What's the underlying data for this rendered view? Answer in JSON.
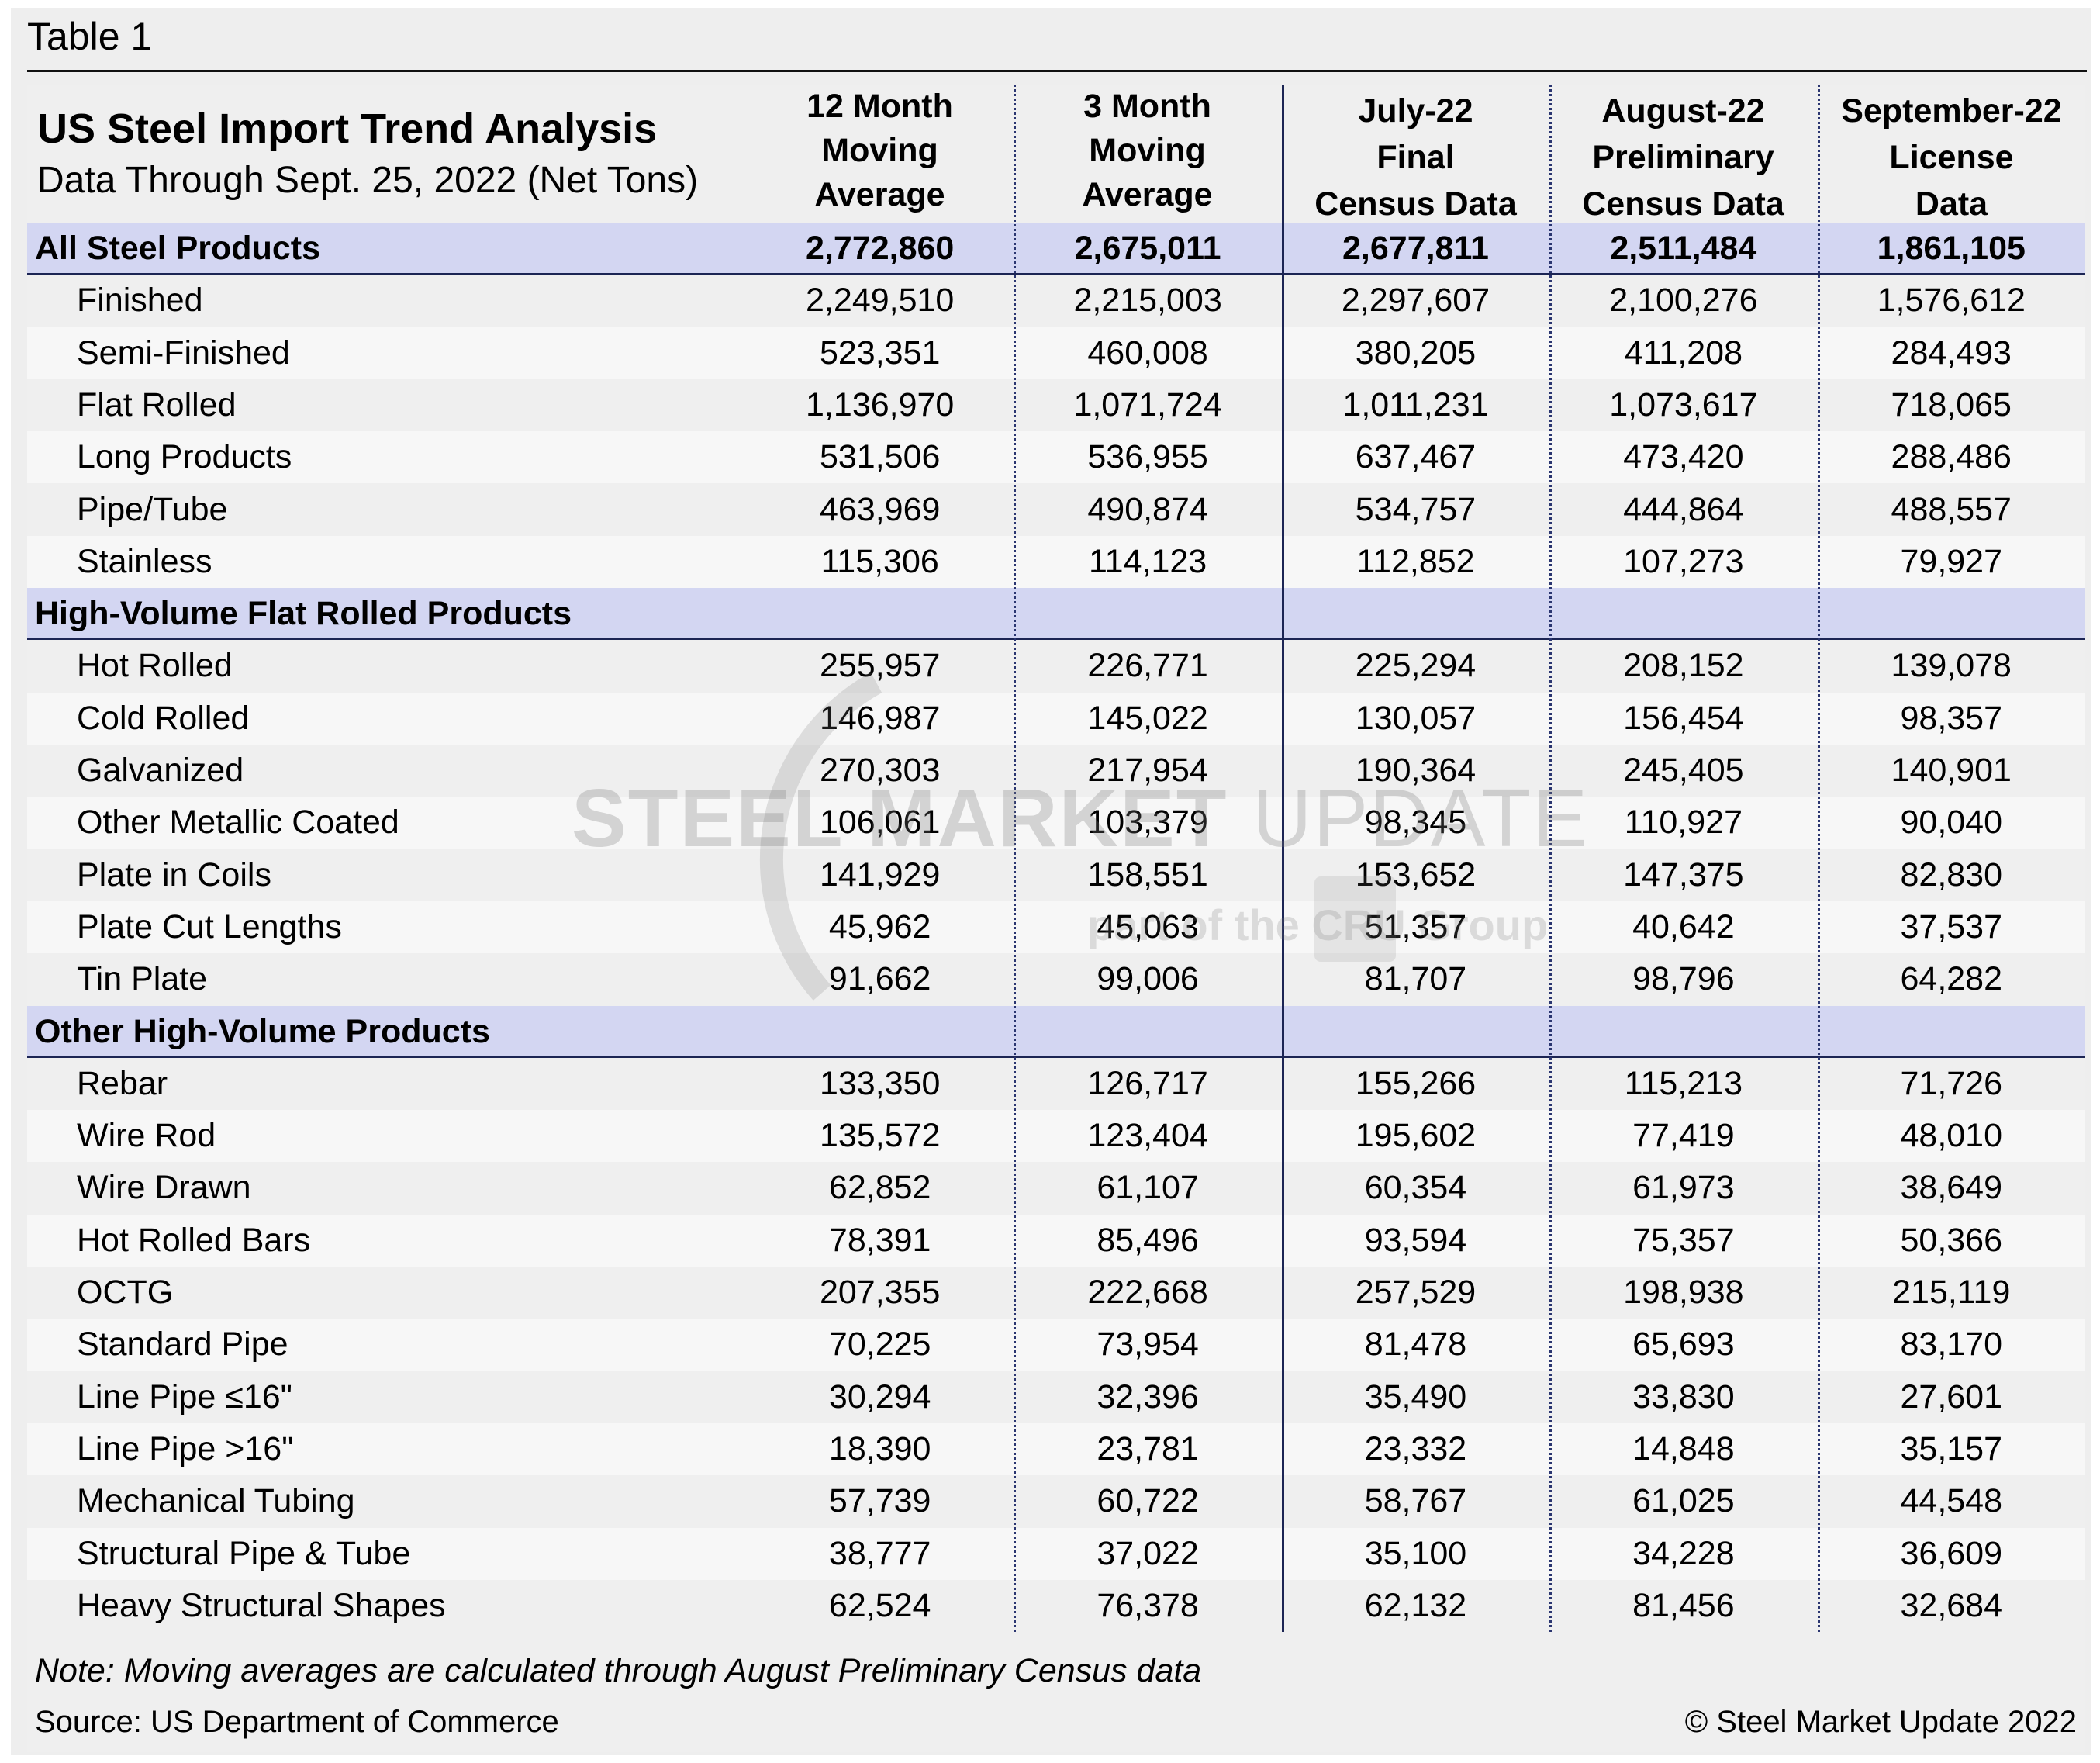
{
  "caption": "Table 1",
  "header": {
    "title": "US Steel Import Trend Analysis",
    "subtitle": "Data Through Sept. 25, 2022 (Net Tons)",
    "columns": [
      [
        "12 Month",
        "Moving",
        "Average"
      ],
      [
        "3 Month",
        "Moving",
        "Average"
      ],
      [
        "July-22",
        "Final",
        "Census Data"
      ],
      [
        "August-22",
        "Preliminary",
        "Census Data"
      ],
      [
        "September-22",
        "License",
        "Data"
      ]
    ]
  },
  "colors": {
    "band": "#d3d6f2",
    "rule": "#1c2554",
    "background": "#eeeeee"
  },
  "sections": [
    {
      "label": "All Steel Products",
      "values": [
        "2,772,860",
        "2,675,011",
        "2,677,811",
        "2,511,484",
        "1,861,105"
      ],
      "rows": [
        {
          "label": "Finished",
          "values": [
            "2,249,510",
            "2,215,003",
            "2,297,607",
            "2,100,276",
            "1,576,612"
          ]
        },
        {
          "label": "Semi-Finished",
          "values": [
            "523,351",
            "460,008",
            "380,205",
            "411,208",
            "284,493"
          ]
        },
        {
          "label": "Flat Rolled",
          "values": [
            "1,136,970",
            "1,071,724",
            "1,011,231",
            "1,073,617",
            "718,065"
          ]
        },
        {
          "label": "Long Products",
          "values": [
            "531,506",
            "536,955",
            "637,467",
            "473,420",
            "288,486"
          ]
        },
        {
          "label": "Pipe/Tube",
          "values": [
            "463,969",
            "490,874",
            "534,757",
            "444,864",
            "488,557"
          ]
        },
        {
          "label": "Stainless",
          "values": [
            "115,306",
            "114,123",
            "112,852",
            "107,273",
            "79,927"
          ]
        }
      ]
    },
    {
      "label": "High-Volume Flat Rolled Products",
      "values": [
        "",
        "",
        "",
        "",
        ""
      ],
      "rows": [
        {
          "label": "Hot Rolled",
          "values": [
            "255,957",
            "226,771",
            "225,294",
            "208,152",
            "139,078"
          ]
        },
        {
          "label": "Cold Rolled",
          "values": [
            "146,987",
            "145,022",
            "130,057",
            "156,454",
            "98,357"
          ]
        },
        {
          "label": "Galvanized",
          "values": [
            "270,303",
            "217,954",
            "190,364",
            "245,405",
            "140,901"
          ]
        },
        {
          "label": "Other Metallic Coated",
          "values": [
            "106,061",
            "103,379",
            "98,345",
            "110,927",
            "90,040"
          ]
        },
        {
          "label": "Plate in Coils",
          "values": [
            "141,929",
            "158,551",
            "153,652",
            "147,375",
            "82,830"
          ]
        },
        {
          "label": "Plate Cut Lengths",
          "values": [
            "45,962",
            "45,063",
            "51,357",
            "40,642",
            "37,537"
          ]
        },
        {
          "label": "Tin Plate",
          "values": [
            "91,662",
            "99,006",
            "81,707",
            "98,796",
            "64,282"
          ]
        }
      ]
    },
    {
      "label": "Other High-Volume Products",
      "values": [
        "",
        "",
        "",
        "",
        ""
      ],
      "rows": [
        {
          "label": "Rebar",
          "values": [
            "133,350",
            "126,717",
            "155,266",
            "115,213",
            "71,726"
          ]
        },
        {
          "label": "Wire Rod",
          "values": [
            "135,572",
            "123,404",
            "195,602",
            "77,419",
            "48,010"
          ]
        },
        {
          "label": "Wire Drawn",
          "values": [
            "62,852",
            "61,107",
            "60,354",
            "61,973",
            "38,649"
          ]
        },
        {
          "label": "Hot Rolled Bars",
          "values": [
            "78,391",
            "85,496",
            "93,594",
            "75,357",
            "50,366"
          ]
        },
        {
          "label": "OCTG",
          "values": [
            "207,355",
            "222,668",
            "257,529",
            "198,938",
            "215,119"
          ]
        },
        {
          "label": "Standard Pipe",
          "values": [
            "70,225",
            "73,954",
            "81,478",
            "65,693",
            "83,170"
          ]
        },
        {
          "label": "Line Pipe ≤16\"",
          "values": [
            "30,294",
            "32,396",
            "35,490",
            "33,830",
            "27,601"
          ]
        },
        {
          "label": "Line Pipe >16\"",
          "values": [
            "18,390",
            "23,781",
            "23,332",
            "14,848",
            "35,157"
          ]
        },
        {
          "label": "Mechanical Tubing",
          "values": [
            "57,739",
            "60,722",
            "58,767",
            "61,025",
            "44,548"
          ]
        },
        {
          "label": "Structural Pipe & Tube",
          "values": [
            "38,777",
            "37,022",
            "35,100",
            "34,228",
            "36,609"
          ]
        },
        {
          "label": "Heavy Structural Shapes",
          "values": [
            "62,524",
            "76,378",
            "62,132",
            "81,456",
            "32,684"
          ]
        }
      ]
    }
  ],
  "footer": {
    "note": "Note: Moving averages are calculated through August Preliminary Census data",
    "source": "Source: US Department of Commerce",
    "copyright": "© Steel Market Update 2022"
  },
  "watermark": {
    "bold": "STEEL MARKET",
    "light": " UPDATE",
    "sub": "part of the CRU Group"
  }
}
